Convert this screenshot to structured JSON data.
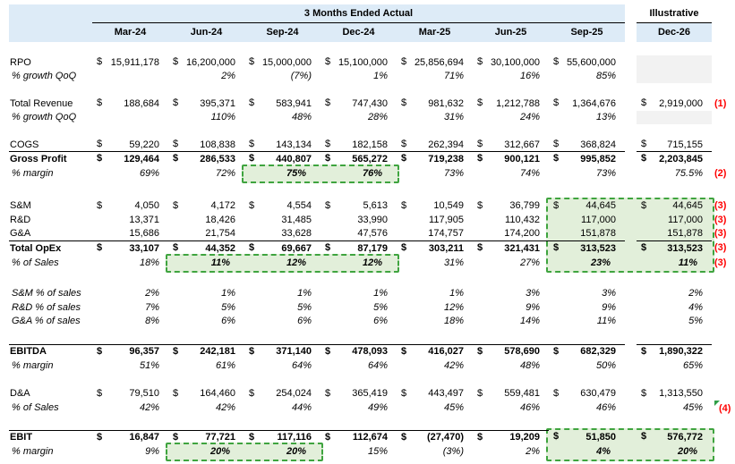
{
  "header": {
    "actual_title": "3 Months Ended Actual",
    "columns": [
      "Mar-24",
      "Jun-24",
      "Sep-24",
      "Dec-24",
      "Mar-25",
      "Jun-25",
      "Sep-25"
    ],
    "illustrative_title": "Illustrative",
    "illustrative_column": "Dec-26"
  },
  "colors": {
    "header_fill": "#DDEBF7",
    "highlight_fill": "#E2EFDA",
    "highlight_border": "#3FA43F",
    "gray_fill": "#F2F2F2",
    "note_red": "#FF0000",
    "comment_flag_green": "#2E9E46"
  },
  "rows": [
    {
      "key": "sp1",
      "spacer": true,
      "h": 10
    },
    {
      "key": "rpo",
      "label": "RPO",
      "fmt": "money",
      "h": 15.5,
      "values": [
        "15,911,178",
        "16,200,000",
        "15,000,000",
        "15,100,000",
        "25,856,694",
        "30,100,000",
        "55,600,000"
      ],
      "dec26": "",
      "dec26_gray": true
    },
    {
      "key": "rpo_growth",
      "label": "% growth QoQ",
      "italic": true,
      "fmt": "pct",
      "h": 15.5,
      "values": [
        "",
        "2%",
        "(7%)",
        "1%",
        "71%",
        "16%",
        "85%"
      ],
      "dec26": "",
      "dec26_gray": true
    },
    {
      "key": "sp2",
      "spacer": true,
      "h": 15
    },
    {
      "key": "revenue",
      "label": "Total Revenue",
      "fmt": "money",
      "h": 15.5,
      "values": [
        "188,684",
        "395,371",
        "583,941",
        "747,430",
        "981,632",
        "1,212,788",
        "1,364,676"
      ],
      "dec26": "2,919,000",
      "dec26_money": true,
      "note": "(1)"
    },
    {
      "key": "rev_growth",
      "label": "% growth QoQ",
      "italic": true,
      "fmt": "pct",
      "h": 15.5,
      "values": [
        "",
        "110%",
        "48%",
        "28%",
        "31%",
        "24%",
        "13%"
      ],
      "dec26": "",
      "dec26_gray": true
    },
    {
      "key": "sp3",
      "spacer": true,
      "h": 15
    },
    {
      "key": "cogs",
      "label": "COGS",
      "fmt": "money",
      "h": 15.5,
      "values": [
        "59,220",
        "108,838",
        "143,134",
        "182,158",
        "262,394",
        "312,667",
        "368,824"
      ],
      "dec26": "715,155",
      "dec26_money": true,
      "rule": "full"
    },
    {
      "key": "gp",
      "label": "Gross Profit",
      "bold": true,
      "fmt": "money",
      "h": 16,
      "values": [
        "129,464",
        "286,533",
        "440,807",
        "565,272",
        "719,238",
        "900,121",
        "995,852"
      ],
      "dec26": "2,203,845",
      "dec26_money": true
    },
    {
      "key": "gp_margin",
      "label": "% margin",
      "italic": true,
      "fmt": "pct",
      "h": 16,
      "values": [
        "69%",
        "72%",
        "75%",
        "76%",
        "73%",
        "74%",
        "73%"
      ],
      "dec26": "75.5%",
      "note": "(2)",
      "bold_cols": [
        2,
        3
      ]
    },
    {
      "key": "sp4",
      "spacer": true,
      "h": 21
    },
    {
      "key": "sm",
      "label": "S&M",
      "fmt": "money",
      "h": 15.5,
      "values": [
        "4,050",
        "4,172",
        "4,554",
        "5,613",
        "10,549",
        "36,799",
        "44,645"
      ],
      "dec26": "44,645",
      "dec26_money": true,
      "note": "(3)"
    },
    {
      "key": "rd",
      "label": "R&D",
      "fmt": "num",
      "h": 15.5,
      "values": [
        "13,371",
        "18,426",
        "31,485",
        "33,990",
        "117,905",
        "110,432",
        "117,000"
      ],
      "dec26": "117,000",
      "note": "(3)"
    },
    {
      "key": "ga",
      "label": "G&A",
      "fmt": "num",
      "h": 15.5,
      "values": [
        "15,686",
        "21,754",
        "33,628",
        "47,576",
        "174,757",
        "174,200",
        "151,878"
      ],
      "dec26": "151,878",
      "note": "(3)",
      "rule": "full"
    },
    {
      "key": "opex",
      "label": "Total OpEx",
      "bold": true,
      "fmt": "money",
      "h": 16.5,
      "values": [
        "33,107",
        "44,352",
        "69,667",
        "87,179",
        "303,211",
        "321,431",
        "313,523"
      ],
      "dec26": "313,523",
      "dec26_money": true,
      "note": "(3)"
    },
    {
      "key": "opex_pct",
      "label": "% of Sales",
      "italic": true,
      "fmt": "pct",
      "h": 16,
      "values": [
        "18%",
        "11%",
        "12%",
        "12%",
        "31%",
        "27%",
        "23%"
      ],
      "dec26": "11%",
      "dec26_bold": true,
      "note": "(3)",
      "bold_cols": [
        1,
        2,
        3,
        6
      ]
    },
    {
      "key": "sp5",
      "spacer": true,
      "h": 19
    },
    {
      "key": "sm_pct",
      "label": "S&M % of sales",
      "italic": true,
      "fmt": "pct",
      "h": 15.5,
      "values": [
        "2%",
        "1%",
        "1%",
        "1%",
        "1%",
        "3%",
        "3%"
      ],
      "dec26": "2%"
    },
    {
      "key": "rd_pct",
      "label": "R&D % of sales",
      "italic": true,
      "fmt": "pct",
      "h": 15.5,
      "values": [
        "7%",
        "5%",
        "5%",
        "5%",
        "12%",
        "9%",
        "9%"
      ],
      "dec26": "4%"
    },
    {
      "key": "ga_pct",
      "label": "G&A % of sales",
      "italic": true,
      "fmt": "pct",
      "h": 15.5,
      "values": [
        "8%",
        "6%",
        "6%",
        "6%",
        "18%",
        "14%",
        "11%"
      ],
      "dec26": "5%"
    },
    {
      "key": "sp6",
      "spacer": true,
      "h": 18,
      "rule": "full"
    },
    {
      "key": "ebitda",
      "label": "EBITDA",
      "bold": true,
      "fmt": "money",
      "h": 16,
      "values": [
        "96,357",
        "242,181",
        "371,140",
        "478,093",
        "416,027",
        "578,690",
        "682,329"
      ],
      "dec26": "1,890,322",
      "dec26_money": true
    },
    {
      "key": "ebitda_margin",
      "label": "% margin",
      "italic": true,
      "fmt": "pct",
      "h": 15.5,
      "values": [
        "51%",
        "61%",
        "64%",
        "64%",
        "42%",
        "48%",
        "50%"
      ],
      "dec26": "65%"
    },
    {
      "key": "sp7",
      "spacer": true,
      "h": 16
    },
    {
      "key": "da",
      "label": "D&A",
      "fmt": "money",
      "h": 15.5,
      "values": [
        "79,510",
        "164,460",
        "254,024",
        "365,419",
        "443,497",
        "559,481",
        "630,479"
      ],
      "dec26": "1,313,550",
      "dec26_money": true
    },
    {
      "key": "da_pct",
      "label": "% of Sales",
      "italic": true,
      "fmt": "pct",
      "h": 15.5,
      "values": [
        "42%",
        "42%",
        "44%",
        "49%",
        "45%",
        "46%",
        "46%"
      ],
      "dec26": "45%",
      "note": "(4)",
      "note_flag": true
    },
    {
      "key": "sp8",
      "spacer": true,
      "h": 17,
      "rule": "toJun25"
    },
    {
      "key": "ebit",
      "label": "EBIT",
      "bold": true,
      "fmt": "money",
      "h": 16,
      "values": [
        "16,847",
        "77,721",
        "117,116",
        "112,674",
        "(27,470)",
        "19,209",
        "51,850"
      ],
      "dec26": "576,772",
      "dec26_money": true
    },
    {
      "key": "ebit_margin",
      "label": "% margin",
      "italic": true,
      "fmt": "pct",
      "h": 16,
      "values": [
        "9%",
        "20%",
        "20%",
        "15%",
        "(3%)",
        "2%",
        "4%"
      ],
      "dec26": "20%",
      "dec26_bold": true,
      "bold_cols": [
        1,
        2,
        6
      ]
    }
  ],
  "highlights": [
    {
      "name": "gross-margin-sep24-dec24",
      "row_start": "gp_margin",
      "row_end": "gp_margin",
      "col_start": 2,
      "col_end": 3
    },
    {
      "name": "opex-pct-jun24-dec24",
      "row_start": "opex_pct",
      "row_end": "opex_pct",
      "col_start": 1,
      "col_end": 3
    },
    {
      "name": "opex-block-sep25-dec26",
      "row_start": "sm",
      "row_end": "opex_pct",
      "col_start": 6,
      "col_end": 7
    },
    {
      "name": "ebit-margin-jun24-sep24",
      "row_start": "ebit_margin",
      "row_end": "ebit_margin",
      "col_start": 1,
      "col_end": 2
    },
    {
      "name": "ebit-block-sep25-dec26",
      "row_start": "ebit",
      "row_end": "ebit_margin",
      "col_start": 6,
      "col_end": 7
    }
  ]
}
